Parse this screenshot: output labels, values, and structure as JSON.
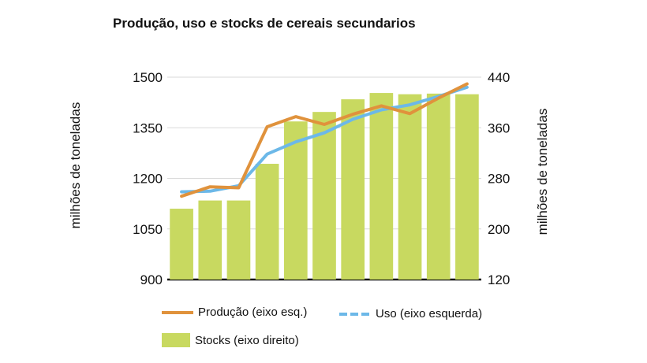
{
  "chart_data": {
    "type": "bar",
    "title": "Produção, uso e stocks de cereais secundarios",
    "ylabel_left": "milhões de toneladas",
    "ylabel_right": "milhões de toneladas",
    "left_axis": {
      "min": 900,
      "max": 1500,
      "ticks": [
        "1500",
        "1350",
        "1200",
        "1050",
        "900"
      ]
    },
    "right_axis": {
      "min": 120,
      "max": 440,
      "ticks": [
        "440",
        "360",
        "280",
        "200",
        "120"
      ]
    },
    "x_count": 11,
    "series": [
      {
        "name": "Stocks (eixo direito)",
        "kind": "bar",
        "axis": "right",
        "color": "#c8d960",
        "values": [
          232,
          245,
          245,
          303,
          370,
          385,
          405,
          415,
          413,
          414,
          413
        ]
      },
      {
        "name": "Uso (eixo esquerda)",
        "kind": "line",
        "axis": "left",
        "color": "#6cb8e8",
        "dashed": true,
        "values": [
          1160,
          1162,
          1178,
          1272,
          1308,
          1335,
          1375,
          1403,
          1418,
          1443,
          1470
        ]
      },
      {
        "name": "Produção (eixo esq.)",
        "kind": "line",
        "axis": "left",
        "color": "#e0923c",
        "values": [
          1147,
          1175,
          1172,
          1353,
          1383,
          1360,
          1390,
          1415,
          1392,
          1438,
          1480
        ]
      }
    ],
    "grid": true,
    "legend_position": "bottom"
  }
}
